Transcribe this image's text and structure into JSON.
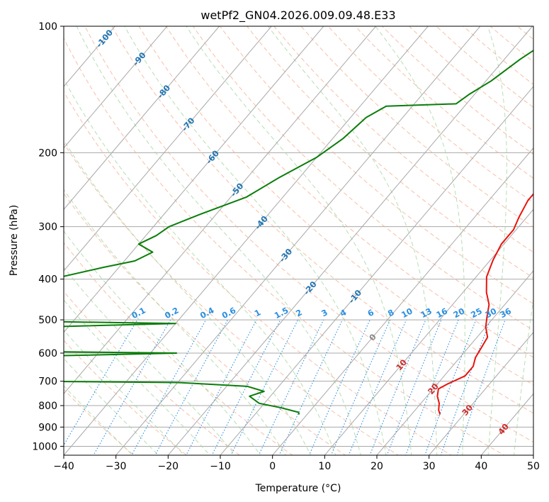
{
  "chart_data": {
    "type": "line",
    "title": "wetPf2_GN04.2026.009.09.48.E33",
    "xlabel": "Temperature (°C)",
    "ylabel": "Pressure (hPa)",
    "xlim": [
      -40,
      50
    ],
    "ylim": [
      1050,
      100
    ],
    "x_ticks": [
      -40,
      -30,
      -20,
      -10,
      0,
      10,
      20,
      30,
      40,
      50
    ],
    "y_ticks": [
      1000,
      900,
      800,
      700,
      600,
      500,
      400,
      300,
      200,
      100
    ],
    "y_scale": "log",
    "skew": "skew-T",
    "colors": {
      "temperature": "#e8140d",
      "dewpoint": "#0a7d0a",
      "isotherm": "#a8a8a8",
      "dry_adiabat": "#f4a98c",
      "moist_adiabat": "#9fd39b",
      "mixing_ratio": "#2b8fe0",
      "isotherm_label_cold": "#1f74b3",
      "isotherm_label_warm": "#cc2a2a",
      "isotherm_label_zero": "#888888",
      "mixing_label": "#2b8fe0"
    },
    "isotherm_labels": [
      {
        "value": -100,
        "text": "-100"
      },
      {
        "value": -90,
        "text": "-90"
      },
      {
        "value": -80,
        "text": "-80"
      },
      {
        "value": -70,
        "text": "-70"
      },
      {
        "value": -60,
        "text": "-60"
      },
      {
        "value": -50,
        "text": "-50"
      },
      {
        "value": -40,
        "text": "-40"
      },
      {
        "value": -30,
        "text": "-30"
      },
      {
        "value": -20,
        "text": "-20"
      },
      {
        "value": -10,
        "text": "-10"
      },
      {
        "value": 0,
        "text": "0"
      },
      {
        "value": 10,
        "text": "10"
      },
      {
        "value": 20,
        "text": "20"
      },
      {
        "value": 30,
        "text": "30"
      },
      {
        "value": 40,
        "text": "40"
      }
    ],
    "mixing_ratio_labels": [
      "0.1",
      "0.2",
      "0.4",
      "0.6",
      "1",
      "1.5",
      "2",
      "3",
      "4",
      "6",
      "8",
      "10",
      "13",
      "16",
      "20",
      "25",
      "30",
      "36"
    ],
    "series": [
      {
        "name": "Temperature",
        "points": [
          [
            3.5,
            100
          ],
          [
            1.5,
            107
          ],
          [
            1.5,
            115
          ],
          [
            2.5,
            125
          ],
          [
            3.0,
            140
          ],
          [
            3.5,
            155
          ],
          [
            5.0,
            175
          ],
          [
            6.5,
            195
          ],
          [
            7.0,
            210
          ],
          [
            7.5,
            235
          ],
          [
            7.5,
            260
          ],
          [
            8.5,
            285
          ],
          [
            9.5,
            305
          ],
          [
            9.5,
            330
          ],
          [
            10.5,
            360
          ],
          [
            12.0,
            395
          ],
          [
            14.5,
            430
          ],
          [
            17.0,
            460
          ],
          [
            18.5,
            490
          ],
          [
            20.0,
            520
          ],
          [
            22.0,
            550
          ],
          [
            22.5,
            580
          ],
          [
            23.0,
            615
          ],
          [
            24.0,
            645
          ],
          [
            24.0,
            680
          ],
          [
            22.0,
            710
          ],
          [
            21.0,
            730
          ],
          [
            22.0,
            760
          ],
          [
            23.5,
            790
          ],
          [
            24.5,
            820
          ],
          [
            25.5,
            840
          ]
        ]
      },
      {
        "name": "Dewpoint",
        "points": [
          [
            -13.0,
            100
          ],
          [
            -15.0,
            110
          ],
          [
            -17.0,
            120
          ],
          [
            -19.0,
            135
          ],
          [
            -21.0,
            145
          ],
          [
            -22.0,
            153
          ],
          [
            -35.0,
            155
          ],
          [
            -37.0,
            165
          ],
          [
            -38.0,
            185
          ],
          [
            -40.0,
            205
          ],
          [
            -44.0,
            230
          ],
          [
            -47.0,
            255
          ],
          [
            -53.0,
            280
          ],
          [
            -57.0,
            300
          ],
          [
            -58.0,
            315
          ],
          [
            -60.0,
            330
          ],
          [
            -56.0,
            345
          ],
          [
            -58.0,
            362
          ],
          [
            -63.0,
            375
          ],
          [
            -80.0,
            430
          ],
          [
            -88.0,
            500
          ],
          [
            -40.0,
            510
          ],
          [
            -85.0,
            528
          ],
          [
            -88.0,
            590
          ],
          [
            -35.0,
            600
          ],
          [
            -85.0,
            620
          ],
          [
            -88.0,
            695
          ],
          [
            -30.0,
            705
          ],
          [
            -16.0,
            720
          ],
          [
            -12.0,
            740
          ],
          [
            -14.0,
            760
          ],
          [
            -11.0,
            790
          ],
          [
            -6.0,
            810
          ],
          [
            -2.0,
            830
          ],
          [
            -1.5,
            840
          ]
        ]
      }
    ]
  }
}
